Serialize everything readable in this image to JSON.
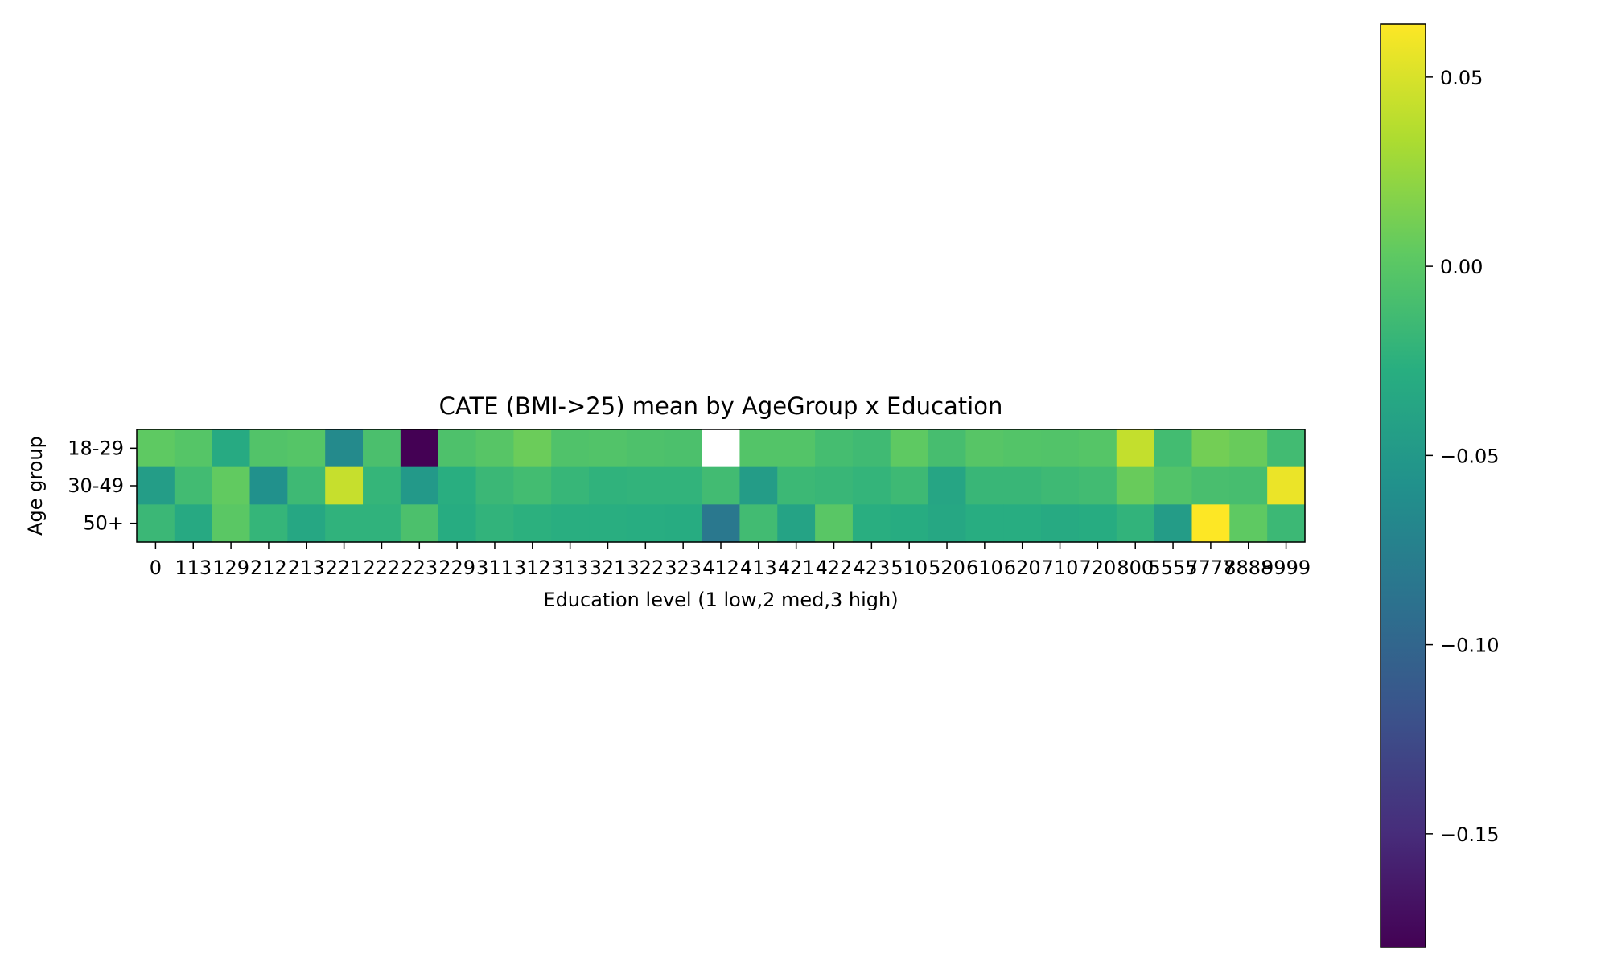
{
  "chart_data": {
    "type": "heatmap",
    "title": "CATE (BMI->25) mean by AgeGroup x Education",
    "xlabel": "Education level (1 low,2 med,3 high)",
    "ylabel": "Age group",
    "x": [
      "0",
      "113",
      "129",
      "212",
      "213",
      "221",
      "222",
      "223",
      "229",
      "311",
      "312",
      "313",
      "321",
      "322",
      "323",
      "412",
      "413",
      "421",
      "422",
      "423",
      "510",
      "520",
      "610",
      "620",
      "710",
      "720",
      "800",
      "5555",
      "7777",
      "8888",
      "9999"
    ],
    "y": [
      "18-29",
      "30-49",
      "50+"
    ],
    "values": [
      [
        0.003,
        -0.002,
        -0.032,
        -0.004,
        -0.002,
        -0.065,
        -0.008,
        -0.18,
        -0.006,
        -0.001,
        0.008,
        -0.005,
        -0.004,
        -0.006,
        -0.007,
        null,
        -0.003,
        -0.003,
        -0.011,
        -0.014,
        0.003,
        -0.01,
        -0.001,
        -0.003,
        -0.004,
        -0.002,
        0.042,
        -0.012,
        0.011,
        0.007,
        -0.013
      ],
      [
        -0.045,
        -0.013,
        0.004,
        -0.058,
        -0.015,
        0.043,
        -0.02,
        -0.05,
        -0.027,
        -0.017,
        -0.012,
        -0.019,
        -0.023,
        -0.022,
        -0.022,
        -0.013,
        -0.046,
        -0.016,
        -0.018,
        -0.021,
        -0.015,
        -0.037,
        -0.018,
        -0.018,
        -0.015,
        -0.013,
        0.007,
        -0.004,
        -0.009,
        -0.01,
        0.057
      ],
      [
        -0.017,
        -0.033,
        0.001,
        -0.02,
        -0.035,
        -0.023,
        -0.023,
        -0.007,
        -0.03,
        -0.022,
        -0.025,
        -0.027,
        -0.027,
        -0.029,
        -0.03,
        -0.083,
        -0.013,
        -0.039,
        0.0,
        -0.027,
        -0.03,
        -0.035,
        -0.029,
        -0.029,
        -0.032,
        -0.03,
        -0.022,
        -0.046,
        0.064,
        0.003,
        -0.016
      ]
    ],
    "colorbar": {
      "min": -0.18,
      "max": 0.064,
      "ticks": [
        0.05,
        0.0,
        -0.05,
        -0.1,
        -0.15
      ],
      "tick_labels": [
        "0.05",
        "0.00",
        "−0.05",
        "−0.10",
        "−0.15"
      ]
    },
    "colormap": "viridis",
    "missing_color": "#ffffff",
    "grid": false
  }
}
